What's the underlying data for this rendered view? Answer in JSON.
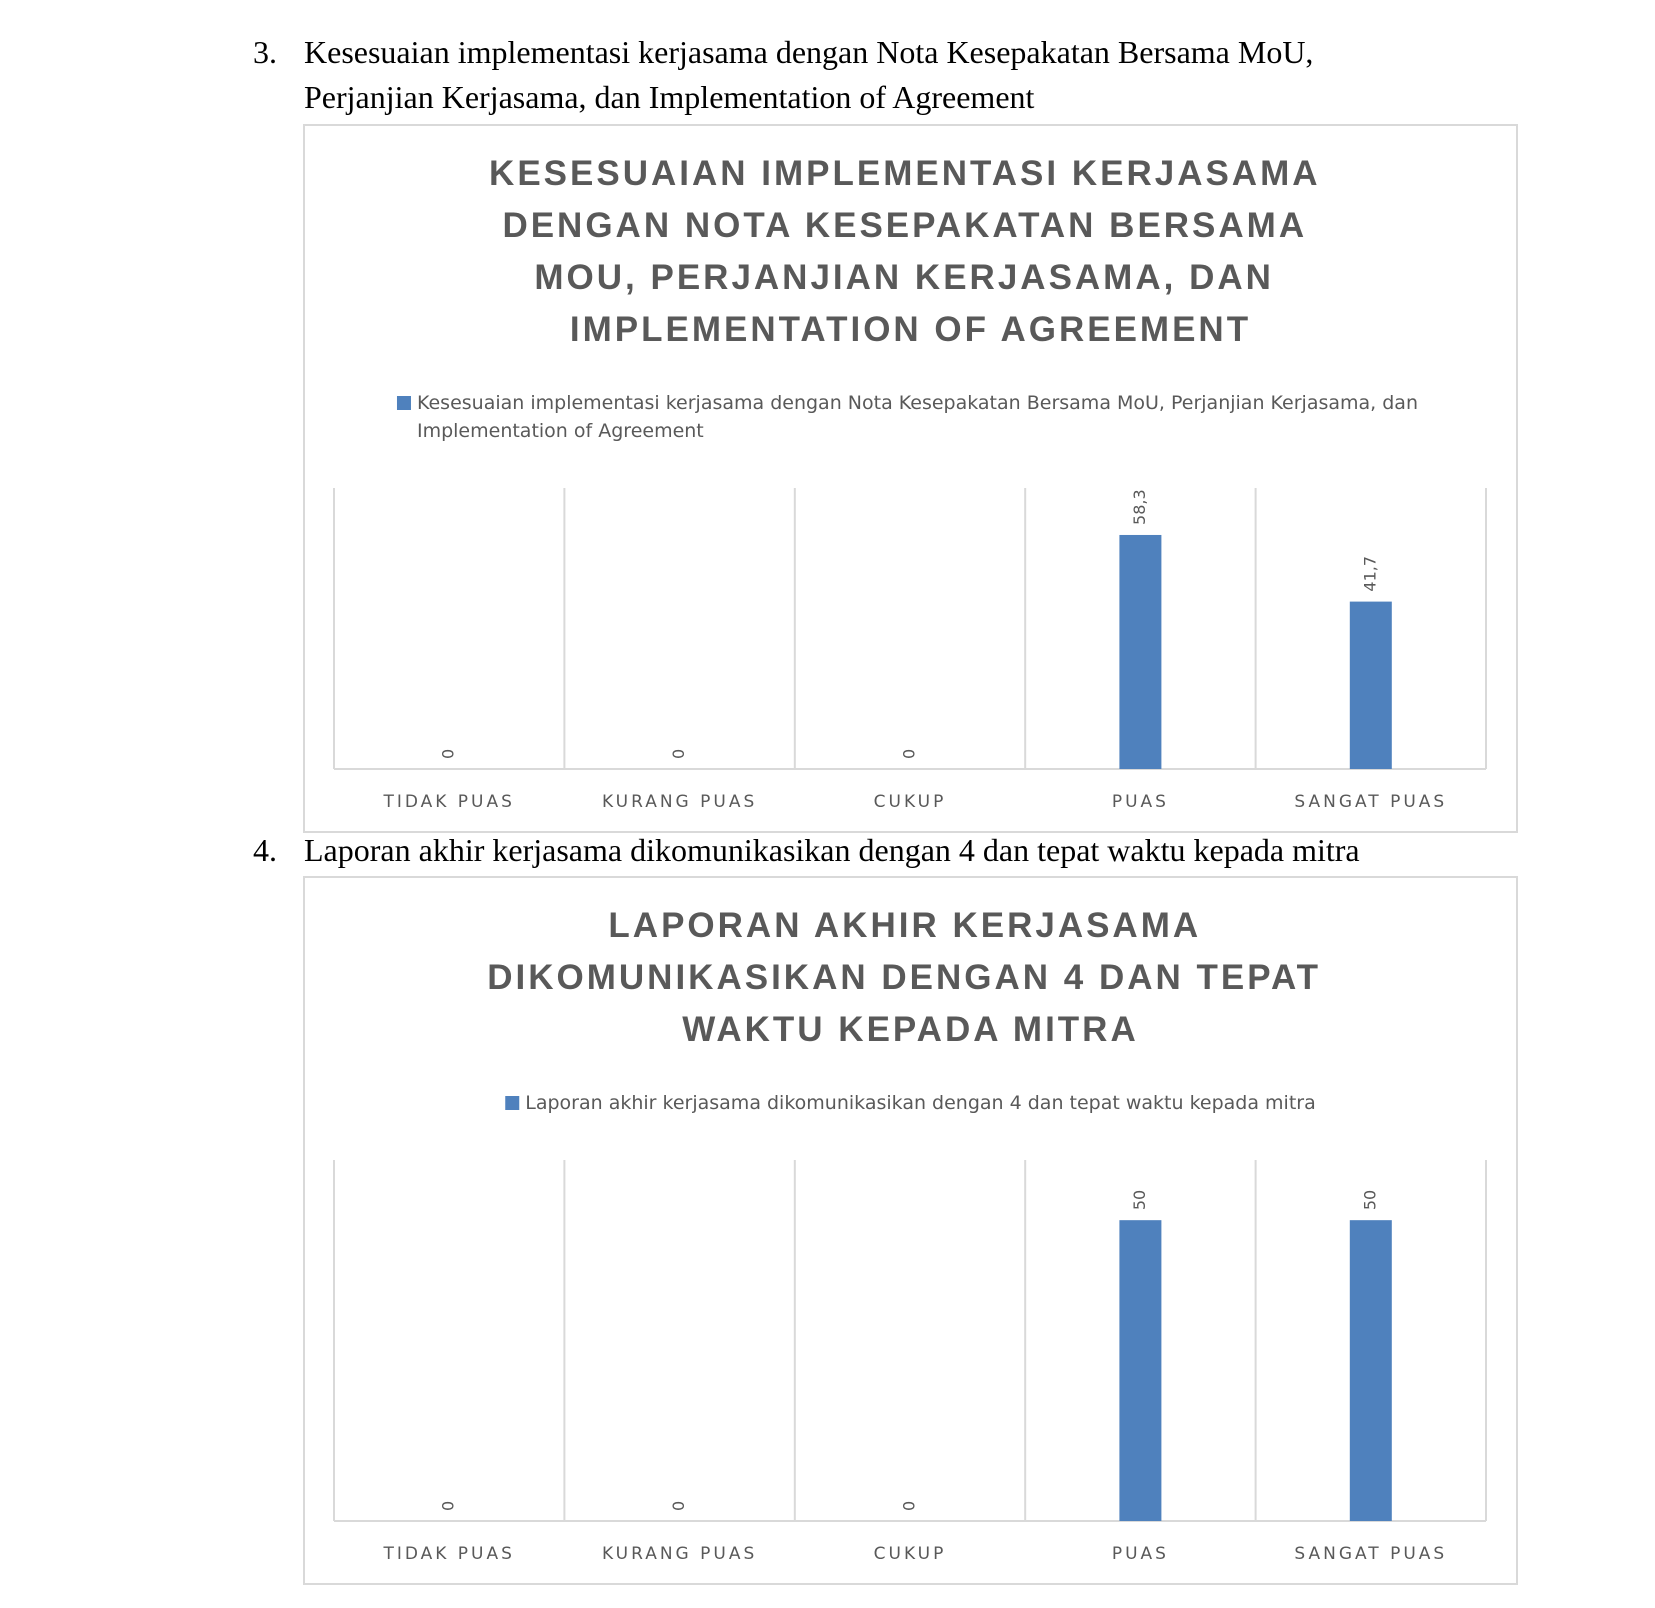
{
  "items": [
    {
      "number": "3.",
      "text": "Kesesuaian implementasi kerjasama dengan Nota Kesepakatan Bersama MoU, Perjanjian Kerjasama, dan Implementation of Agreement"
    },
    {
      "number": "4.",
      "text": "Laporan akhir kerjasama dikomunikasikan dengan 4 dan tepat waktu kepada mitra"
    }
  ],
  "chart_data": [
    {
      "type": "bar",
      "title": "KESESUAIAN IMPLEMENTASI KERJASAMA DENGAN NOTA KESEPAKATAN BERSAMA MOU, PERJANJIAN KERJASAMA, DAN IMPLEMENTATION OF AGREEMENT",
      "categories": [
        "TIDAK PUAS",
        "KURANG PUAS",
        "CUKUP",
        "PUAS",
        "SANGAT PUAS"
      ],
      "series": [
        {
          "name": "Kesesuaian implementasi kerjasama dengan Nota Kesepakatan Bersama MoU, Perjanjian Kerjasama, dan Implementation of Agreement",
          "color": "#4f81bd",
          "values": [
            0,
            0,
            0,
            58.3,
            41.7
          ],
          "value_labels": [
            "0",
            "0",
            "0",
            "58,3",
            "41,7"
          ]
        }
      ],
      "ylim": [
        0,
        70
      ],
      "legend": "top"
    },
    {
      "type": "bar",
      "title": "LAPORAN AKHIR KERJASAMA DIKOMUNIKASIKAN DENGAN 4 DAN TEPAT WAKTU KEPADA MITRA",
      "categories": [
        "TIDAK PUAS",
        "KURANG PUAS",
        "CUKUP",
        "PUAS",
        "SANGAT PUAS"
      ],
      "series": [
        {
          "name": "Laporan akhir kerjasama dikomunikasikan dengan 4 dan tepat waktu kepada mitra",
          "color": "#4f81bd",
          "values": [
            0,
            0,
            0,
            50,
            50
          ]
        }
      ],
      "ylim": [
        0,
        60
      ],
      "legend": "top"
    }
  ]
}
